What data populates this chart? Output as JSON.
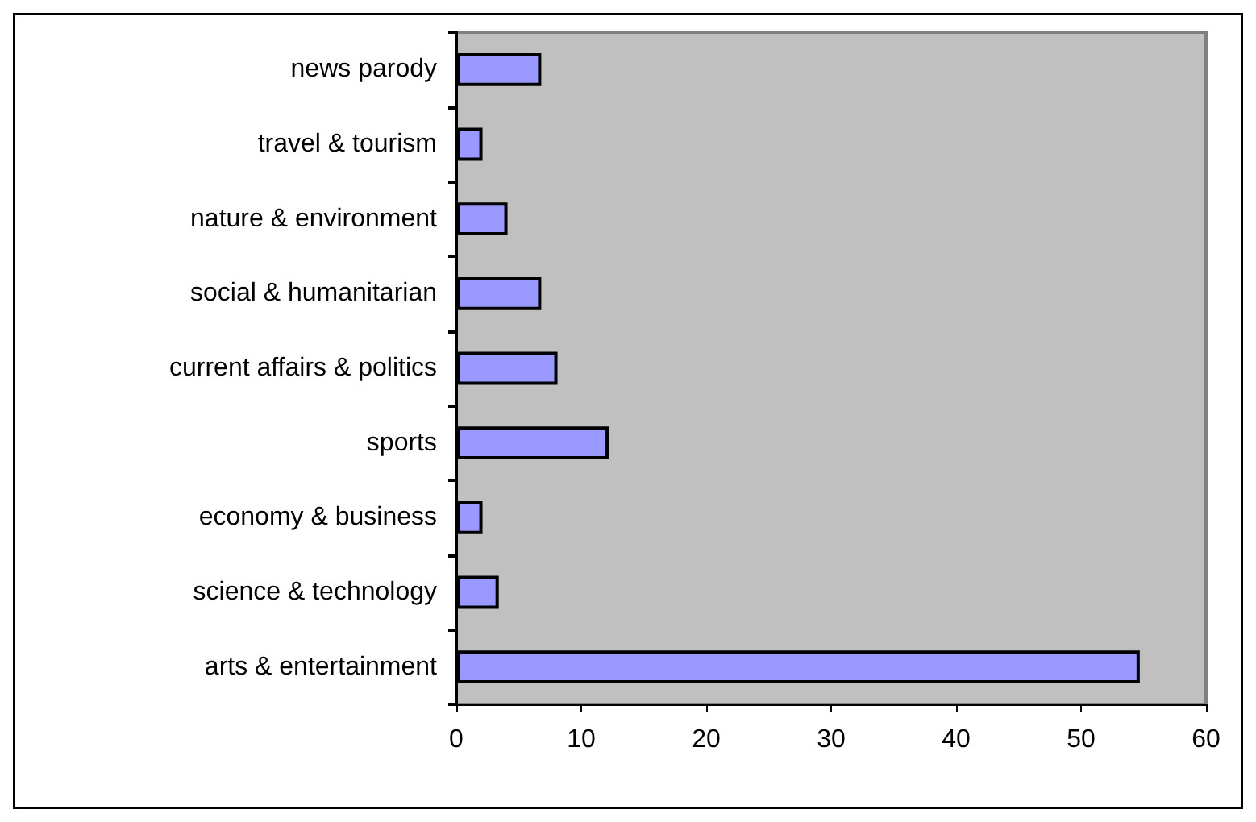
{
  "chart_data": {
    "type": "bar",
    "orientation": "horizontal",
    "categories": [
      "news parody",
      "travel & tourism",
      "nature & environment",
      "social & humanitarian",
      "current affairs & politics",
      "sports",
      "economy & business",
      "science & technology",
      "arts & entertainment"
    ],
    "values": [
      6.8,
      2.1,
      4.1,
      6.8,
      8.1,
      12.2,
      2.1,
      3.4,
      54.7
    ],
    "color": "#9999ff",
    "xlim": [
      0,
      60
    ],
    "xticks": [
      0,
      10,
      20,
      30,
      40,
      50,
      60
    ],
    "grid": false
  }
}
